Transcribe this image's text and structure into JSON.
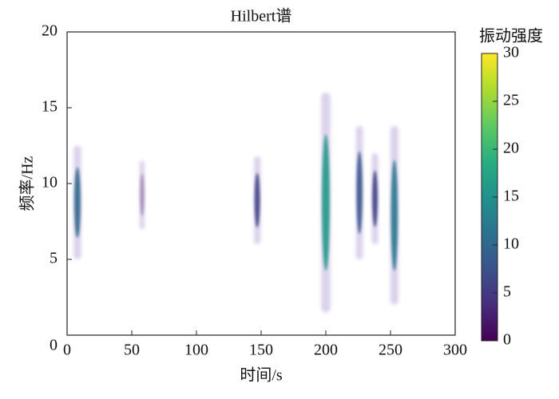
{
  "chart_data": {
    "type": "hilbert-spectrum",
    "title": "Hilbert谱",
    "xlabel": "时间/s",
    "ylabel": "频率/Hz",
    "x": [
      8,
      58,
      147,
      200,
      226,
      238,
      253
    ],
    "y_low": [
      5,
      7,
      6,
      1.5,
      5,
      6,
      2
    ],
    "y_high": [
      12.5,
      11.5,
      11.8,
      16,
      13.8,
      12,
      13.8
    ],
    "values": [
      10,
      1,
      6,
      16,
      8,
      6,
      12
    ],
    "xlim": [
      0,
      300
    ],
    "xticks": [
      0,
      50,
      100,
      150,
      200,
      250,
      300
    ],
    "ylim": [
      0,
      20
    ],
    "yticks": [
      0,
      5,
      10,
      15,
      20
    ],
    "colorbar_title": "振动强度",
    "colormap": "viridis",
    "clim": [
      0,
      30
    ],
    "cticks": [
      0,
      5,
      10,
      15,
      20,
      25,
      30
    ]
  }
}
